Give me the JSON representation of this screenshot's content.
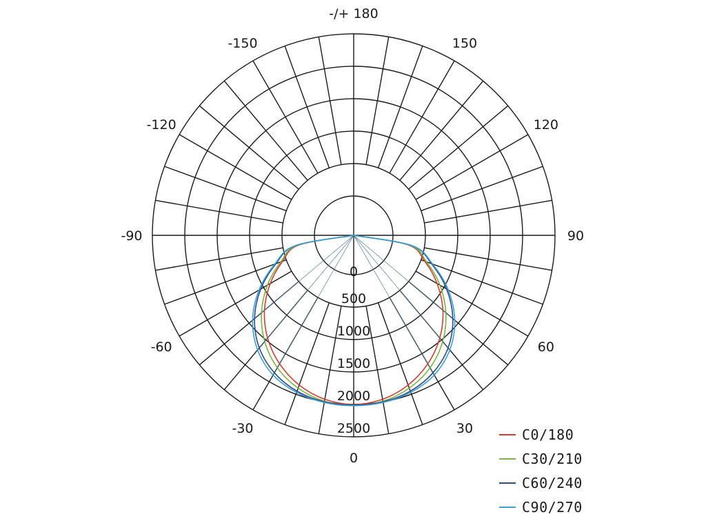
{
  "chart_data": {
    "type": "polar",
    "title": "",
    "angle_labels": [
      {
        "deg": 0,
        "text": "0"
      },
      {
        "deg": 30,
        "text": "30"
      },
      {
        "deg": 60,
        "text": "60"
      },
      {
        "deg": 90,
        "text": "90"
      },
      {
        "deg": 120,
        "text": "120"
      },
      {
        "deg": 150,
        "text": "150"
      },
      {
        "deg": 180,
        "text": "-/+ 180"
      },
      {
        "deg": -150,
        "text": "-150"
      },
      {
        "deg": -120,
        "text": "-120"
      },
      {
        "deg": -90,
        "text": "-90"
      },
      {
        "deg": -60,
        "text": "-60"
      },
      {
        "deg": -30,
        "text": "-30"
      }
    ],
    "radial_labels": [
      "0",
      "500",
      "1000",
      "1500",
      "2000",
      "2500"
    ],
    "radial_ticks": [
      0,
      500,
      1000,
      1500,
      2000,
      2500
    ],
    "r_max": 2500,
    "angle_step_deg": 10,
    "inner_radial_boundary": 500,
    "angles": [
      0,
      10,
      20,
      30,
      40,
      50,
      60,
      70,
      80,
      90
    ],
    "series": [
      {
        "name": "C0/180",
        "color": "#d63a2f",
        "values": [
          2000,
          1960,
          1850,
          1680,
          1460,
          1190,
          880,
          560,
          250,
          0
        ]
      },
      {
        "name": "C30/210",
        "color": "#7ab342",
        "values": [
          2010,
          1990,
          1900,
          1750,
          1530,
          1250,
          930,
          590,
          270,
          0
        ]
      },
      {
        "name": "C60/240",
        "color": "#2c4a8c",
        "values": [
          2010,
          2000,
          1950,
          1840,
          1660,
          1390,
          1050,
          670,
          300,
          0
        ]
      },
      {
        "name": "C90/270",
        "color": "#3aa0d4",
        "values": [
          2020,
          2010,
          1970,
          1880,
          1700,
          1430,
          1080,
          690,
          310,
          0
        ]
      }
    ]
  },
  "legend": {
    "items": [
      {
        "label": "C0/180",
        "color": "#d63a2f"
      },
      {
        "label": "C30/210",
        "color": "#7ab342"
      },
      {
        "label": "C60/240",
        "color": "#2c4a8c"
      },
      {
        "label": "C90/270",
        "color": "#3aa0d4"
      }
    ]
  }
}
